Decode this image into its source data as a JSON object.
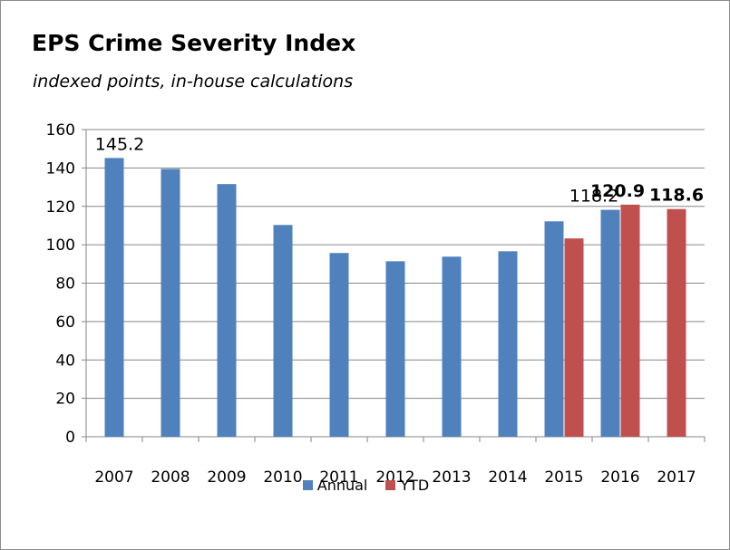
{
  "colors": {
    "annual": "#4f81bd",
    "ytd": "#c0504d",
    "grid": "#868686"
  },
  "chart_data": {
    "type": "bar",
    "title": "EPS Crime Severity Index",
    "subtitle": "indexed points, in-house calculations",
    "xlabel": "",
    "ylabel": "",
    "ylim": [
      0,
      160
    ],
    "yticks": [
      0,
      20,
      40,
      60,
      80,
      100,
      120,
      140,
      160
    ],
    "grid": true,
    "legend_position": "bottom",
    "categories": [
      "2007",
      "2008",
      "2009",
      "2010",
      "2011",
      "2012",
      "2013",
      "2014",
      "2015",
      "2016",
      "2017"
    ],
    "series": [
      {
        "name": "Annual",
        "color": "#4f81bd",
        "values": [
          145.2,
          139.5,
          131.6,
          110.3,
          95.7,
          91.4,
          93.8,
          96.6,
          112.2,
          118.2,
          null
        ]
      },
      {
        "name": "YTD",
        "color": "#c0504d",
        "values": [
          null,
          null,
          null,
          null,
          null,
          null,
          null,
          null,
          103.3,
          120.9,
          118.6
        ]
      }
    ],
    "annotations": [
      {
        "text": "145.2",
        "category": "2007",
        "series": "Annual",
        "bold": false
      },
      {
        "text": "118.2",
        "category": "2016",
        "series": "Annual",
        "bold": false
      },
      {
        "text": "120.9",
        "category": "2016",
        "series": "YTD",
        "bold": true
      },
      {
        "text": "118.6",
        "category": "2017",
        "series": "YTD",
        "bold": true
      }
    ]
  }
}
